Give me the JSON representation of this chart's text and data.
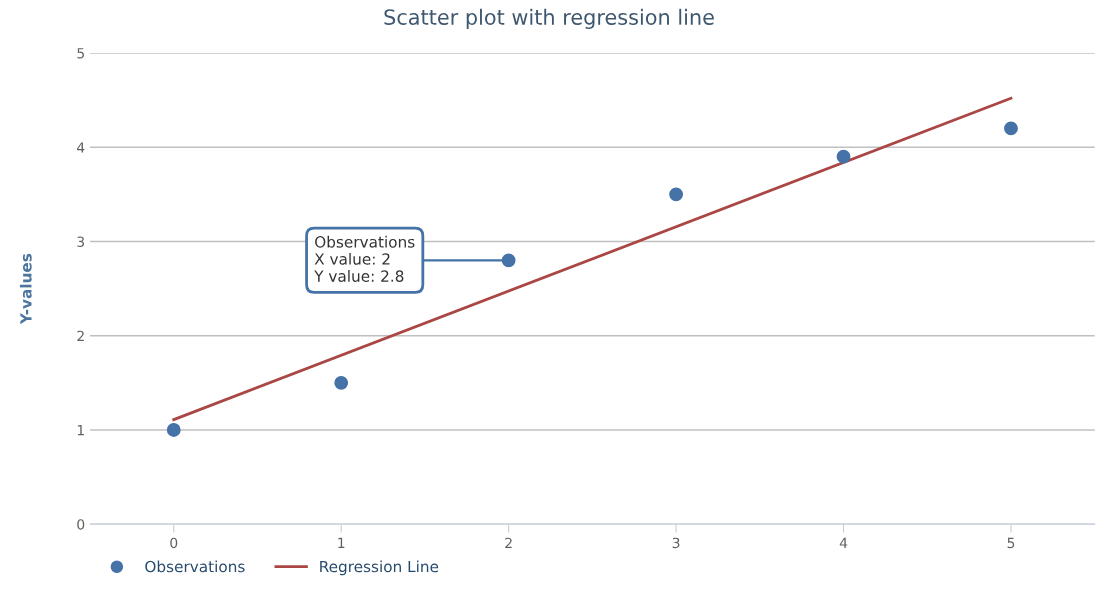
{
  "chart_data": {
    "type": "scatter",
    "title": "Scatter plot with regression line",
    "ylabel": "Y-values",
    "xlim": [
      -0.5,
      5.5
    ],
    "xticks": [
      0,
      1,
      2,
      3,
      4,
      5
    ],
    "ylim": [
      0,
      5
    ],
    "yticks": [
      0,
      1,
      2,
      3,
      4,
      5
    ],
    "grid": "y",
    "legend": "bottom",
    "series": [
      {
        "name": "Observations",
        "color": "#4572a7",
        "marker": "circle",
        "x": [
          0,
          1,
          2,
          3,
          4,
          5
        ],
        "values": [
          1,
          1.5,
          2.8,
          3.5,
          3.9,
          4.2
        ]
      },
      {
        "name": "Regression Line",
        "type": "line",
        "color": "#aa4643",
        "line_style": "solid",
        "x": [
          0,
          5
        ],
        "values": [
          1.11,
          4.52
        ]
      }
    ],
    "annotations": [
      {
        "text": "Observations\nX value: 2\nY value: 2.8",
        "x": 2,
        "y": 2.8
      }
    ]
  }
}
